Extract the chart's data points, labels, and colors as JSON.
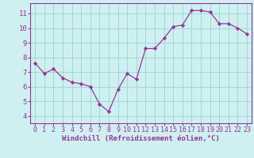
{
  "x": [
    0,
    1,
    2,
    3,
    4,
    5,
    6,
    7,
    8,
    9,
    10,
    11,
    12,
    13,
    14,
    15,
    16,
    17,
    18,
    19,
    20,
    21,
    22,
    23
  ],
  "y": [
    7.6,
    6.9,
    7.2,
    6.6,
    6.3,
    6.2,
    6.0,
    4.8,
    4.3,
    5.8,
    6.9,
    6.5,
    8.6,
    8.6,
    9.3,
    10.1,
    10.2,
    11.2,
    11.2,
    11.1,
    10.3,
    10.3,
    10.0,
    9.6
  ],
  "line_color": "#993399",
  "marker": "D",
  "marker_size": 2.2,
  "bg_color": "#cff0f0",
  "grid_color": "#a0d8d8",
  "xlabel": "Windchill (Refroidissement éolien,°C)",
  "xlim": [
    -0.5,
    23.5
  ],
  "ylim": [
    3.5,
    11.7
  ],
  "yticks": [
    4,
    5,
    6,
    7,
    8,
    9,
    10,
    11
  ],
  "xticks": [
    0,
    1,
    2,
    3,
    4,
    5,
    6,
    7,
    8,
    9,
    10,
    11,
    12,
    13,
    14,
    15,
    16,
    17,
    18,
    19,
    20,
    21,
    22,
    23
  ],
  "xlabel_color": "#993399",
  "tick_color": "#993399",
  "spine_color": "#993399",
  "label_fontsize": 6.5,
  "tick_fontsize": 6.0
}
